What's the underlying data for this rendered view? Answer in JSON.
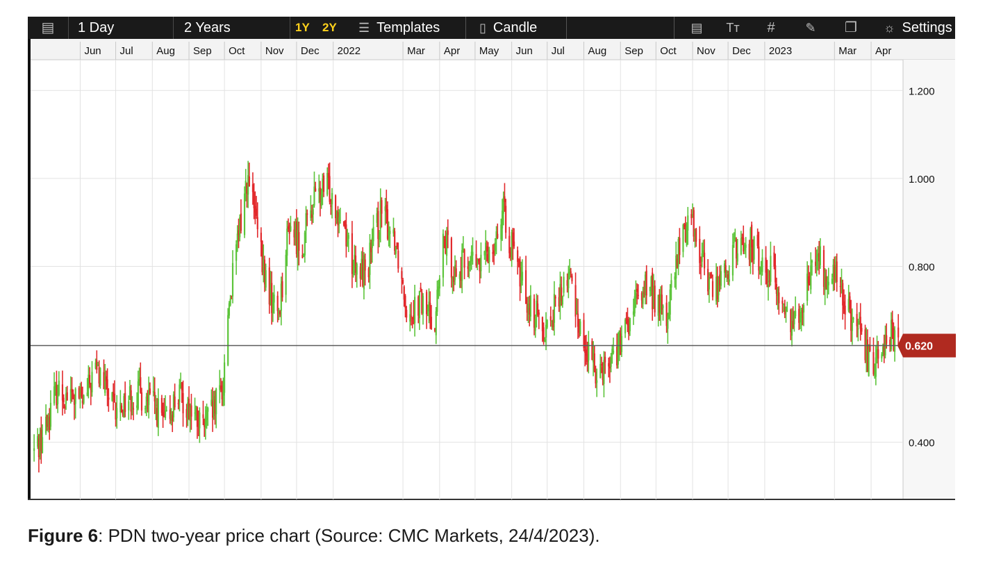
{
  "toolbar": {
    "menu_icon": "list-icon",
    "interval": "1 Day",
    "range": "2 Years",
    "period_1y": "1Y",
    "period_2y": "2Y",
    "templates_label": "Templates",
    "templates_icon": "sliders-icon",
    "chart_type_label": "Candle",
    "chart_type_icon": "candlestick-icon",
    "right_icons": [
      "document-icon",
      "text-size-icon",
      "grid-icon",
      "drawing-tool-icon",
      "layers-icon",
      "gear-icon"
    ],
    "text_size_glyph": "Tт",
    "settings_label": "Settings"
  },
  "caption": {
    "label": "Figure 6",
    "text": ": PDN two-year price chart (Source: CMC Markets, 24/4/2023)."
  },
  "colors": {
    "up": "#5cc43a",
    "down": "#e2292c",
    "price_badge": "#b02a20",
    "toolbar_bg": "#1a1a1a",
    "period_highlight": "#ffd21c"
  },
  "chart_data": {
    "type": "candlestick",
    "interval": "1 Day",
    "range": "2 Years",
    "x_ticks": [
      {
        "label": "Jun",
        "date": "2021-06-01"
      },
      {
        "label": "Jul",
        "date": "2021-07-01"
      },
      {
        "label": "Aug",
        "date": "2021-08-01"
      },
      {
        "label": "Sep",
        "date": "2021-09-01"
      },
      {
        "label": "Oct",
        "date": "2021-10-01"
      },
      {
        "label": "Nov",
        "date": "2021-11-01"
      },
      {
        "label": "Dec",
        "date": "2021-12-01"
      },
      {
        "label": "2022",
        "date": "2022-01-01"
      },
      {
        "label": "Mar",
        "date": "2022-03-01"
      },
      {
        "label": "Apr",
        "date": "2022-04-01"
      },
      {
        "label": "May",
        "date": "2022-05-01"
      },
      {
        "label": "Jun",
        "date": "2022-06-01"
      },
      {
        "label": "Jul",
        "date": "2022-07-01"
      },
      {
        "label": "Aug",
        "date": "2022-08-01"
      },
      {
        "label": "Sep",
        "date": "2022-09-01"
      },
      {
        "label": "Oct",
        "date": "2022-10-01"
      },
      {
        "label": "Nov",
        "date": "2022-11-01"
      },
      {
        "label": "Dec",
        "date": "2022-12-01"
      },
      {
        "label": "2023",
        "date": "2023-01-01"
      },
      {
        "label": "Mar",
        "date": "2023-03-01"
      },
      {
        "label": "Apr",
        "date": "2023-04-01"
      }
    ],
    "x_range": [
      "2021-04-20",
      "2023-04-28"
    ],
    "y_ticks": [
      {
        "label": "1.200",
        "value": 1.2
      },
      {
        "label": "1.000",
        "value": 1.0
      },
      {
        "label": "0.800",
        "value": 0.8
      },
      {
        "label": "0.400",
        "value": 0.4
      }
    ],
    "ylim": [
      0.27,
      1.27
    ],
    "grid": true,
    "current_price": {
      "label": "0.620",
      "value": 0.62
    },
    "trend": [
      [
        "2021-04-23",
        0.38
      ],
      [
        "2021-05-01",
        0.42
      ],
      [
        "2021-05-12",
        0.52
      ],
      [
        "2021-05-25",
        0.5
      ],
      [
        "2021-06-05",
        0.49
      ],
      [
        "2021-06-13",
        0.57
      ],
      [
        "2021-06-20",
        0.54
      ],
      [
        "2021-07-01",
        0.46
      ],
      [
        "2021-07-10",
        0.5
      ],
      [
        "2021-07-20",
        0.51
      ],
      [
        "2021-08-01",
        0.49
      ],
      [
        "2021-08-12",
        0.44
      ],
      [
        "2021-08-22",
        0.51
      ],
      [
        "2021-09-01",
        0.48
      ],
      [
        "2021-09-12",
        0.43
      ],
      [
        "2021-09-22",
        0.47
      ],
      [
        "2021-09-30",
        0.53
      ],
      [
        "2021-10-04",
        0.7
      ],
      [
        "2021-10-12",
        0.85
      ],
      [
        "2021-10-20",
        1.0
      ],
      [
        "2021-10-26",
        0.93
      ],
      [
        "2021-11-02",
        0.8
      ],
      [
        "2021-11-10",
        0.72
      ],
      [
        "2021-11-16",
        0.7
      ],
      [
        "2021-11-25",
        0.9
      ],
      [
        "2021-12-05",
        0.84
      ],
      [
        "2021-12-15",
        0.95
      ],
      [
        "2021-12-28",
        0.98
      ],
      [
        "2022-01-10",
        0.9
      ],
      [
        "2022-01-20",
        0.78
      ],
      [
        "2022-01-30",
        0.8
      ],
      [
        "2022-02-10",
        0.92
      ],
      [
        "2022-02-22",
        0.87
      ],
      [
        "2022-03-05",
        0.7
      ],
      [
        "2022-03-15",
        0.72
      ],
      [
        "2022-03-28",
        0.68
      ],
      [
        "2022-04-05",
        0.86
      ],
      [
        "2022-04-15",
        0.78
      ],
      [
        "2022-04-25",
        0.82
      ],
      [
        "2022-05-05",
        0.8
      ],
      [
        "2022-05-15",
        0.85
      ],
      [
        "2022-05-25",
        0.92
      ],
      [
        "2022-06-05",
        0.8
      ],
      [
        "2022-06-18",
        0.7
      ],
      [
        "2022-06-30",
        0.66
      ],
      [
        "2022-07-10",
        0.72
      ],
      [
        "2022-07-20",
        0.78
      ],
      [
        "2022-08-01",
        0.62
      ],
      [
        "2022-08-10",
        0.57
      ],
      [
        "2022-08-20",
        0.58
      ],
      [
        "2022-09-01",
        0.62
      ],
      [
        "2022-09-12",
        0.7
      ],
      [
        "2022-09-22",
        0.76
      ],
      [
        "2022-10-02",
        0.72
      ],
      [
        "2022-10-10",
        0.68
      ],
      [
        "2022-10-20",
        0.83
      ],
      [
        "2022-10-30",
        0.93
      ],
      [
        "2022-11-08",
        0.82
      ],
      [
        "2022-11-18",
        0.75
      ],
      [
        "2022-11-28",
        0.78
      ],
      [
        "2022-12-08",
        0.84
      ],
      [
        "2022-12-20",
        0.85
      ],
      [
        "2022-12-30",
        0.8
      ],
      [
        "2023-01-08",
        0.79
      ],
      [
        "2023-01-16",
        0.7
      ],
      [
        "2023-01-26",
        0.68
      ],
      [
        "2023-02-05",
        0.75
      ],
      [
        "2023-02-15",
        0.83
      ],
      [
        "2023-02-22",
        0.76
      ],
      [
        "2023-03-02",
        0.78
      ],
      [
        "2023-03-12",
        0.7
      ],
      [
        "2023-03-22",
        0.64
      ],
      [
        "2023-04-01",
        0.57
      ],
      [
        "2023-04-08",
        0.62
      ],
      [
        "2023-04-16",
        0.65
      ],
      [
        "2023-04-24",
        0.62
      ]
    ]
  }
}
